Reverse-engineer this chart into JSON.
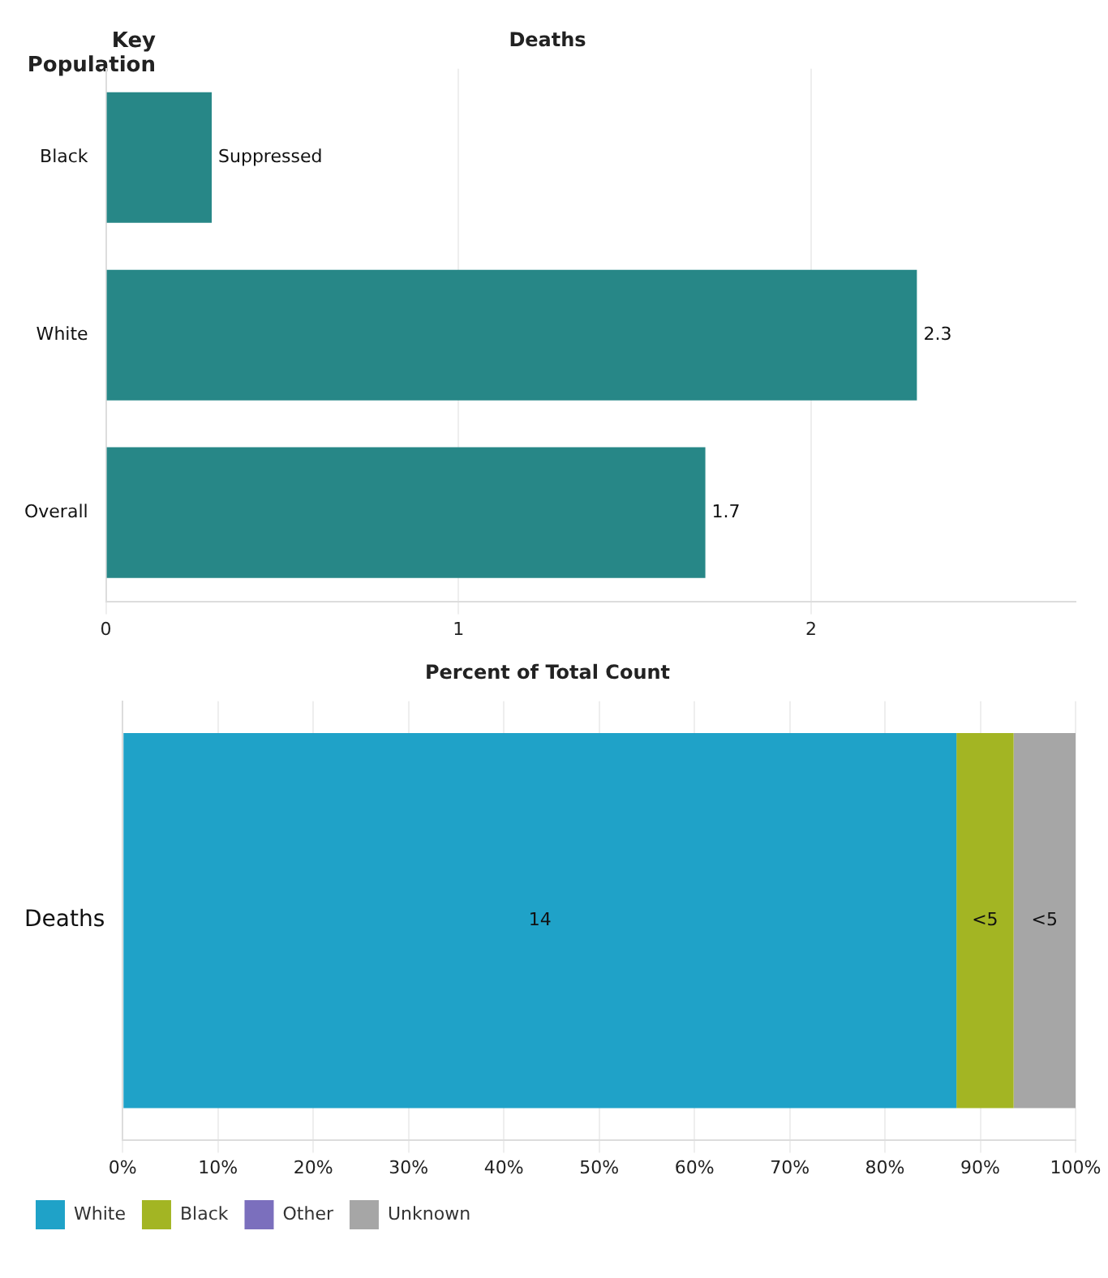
{
  "chart_data": [
    {
      "type": "bar",
      "orientation": "horizontal",
      "title": "Deaths",
      "ylabel": "Key Population",
      "categories": [
        "Black",
        "White",
        "Overall"
      ],
      "series": [
        {
          "color": "#278787",
          "values": [
            0.3,
            2.3,
            1.7
          ],
          "value_labels": [
            "Suppressed",
            "2.3",
            "1.7"
          ]
        }
      ],
      "xlim": [
        0,
        2.75
      ],
      "xticks": [
        0,
        1,
        2
      ],
      "grid": "x",
      "legend": false
    },
    {
      "type": "bar",
      "orientation": "horizontal",
      "stacked": true,
      "title": "Percent of Total Count",
      "categories": [
        "Deaths"
      ],
      "series": [
        {
          "name": "White",
          "color": "#1fa2c8",
          "values": [
            87.5
          ]
        },
        {
          "name": "Black",
          "color": "#a3b523",
          "values": [
            6
          ]
        },
        {
          "name": "Other",
          "color": "#7b6fbd",
          "values": [
            0
          ]
        },
        {
          "name": "Unknown",
          "color": "#a6a6a6",
          "values": [
            6.5
          ]
        }
      ],
      "annotations": [
        "14",
        "<5",
        "<5"
      ],
      "xlim": [
        0,
        100
      ],
      "xticks": [
        {
          "value": 0,
          "label": "0%"
        },
        {
          "value": 10,
          "label": "10%"
        },
        {
          "value": 20,
          "label": "20%"
        },
        {
          "value": 30,
          "label": "30%"
        },
        {
          "value": 40,
          "label": "40%"
        },
        {
          "value": 50,
          "label": "50%"
        },
        {
          "value": 60,
          "label": "60%"
        },
        {
          "value": 70,
          "label": "70%"
        },
        {
          "value": 80,
          "label": "80%"
        },
        {
          "value": 90,
          "label": "90%"
        },
        {
          "value": 100,
          "label": "100%"
        }
      ],
      "grid": "x",
      "legend": "bottom"
    }
  ]
}
